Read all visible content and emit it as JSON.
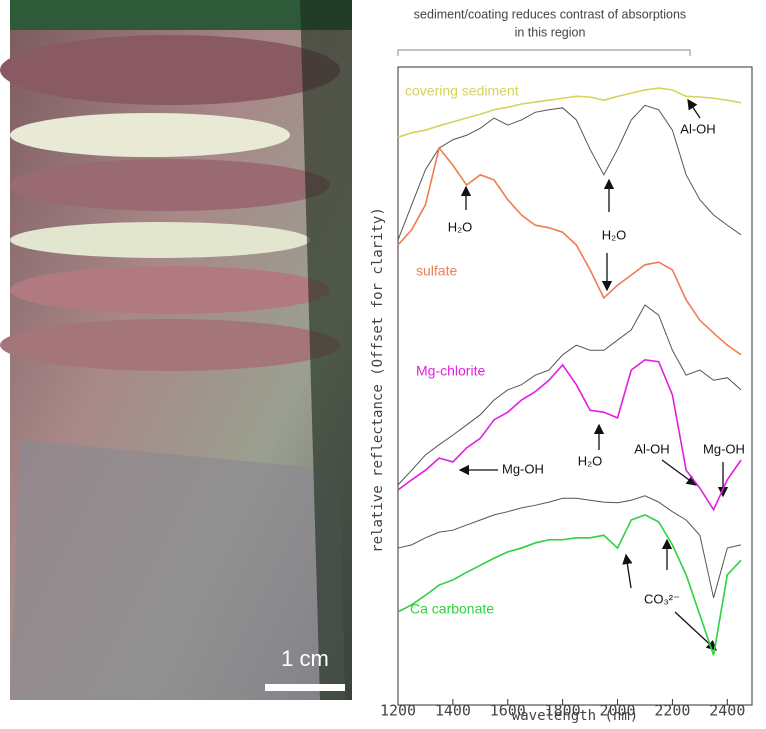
{
  "chart_data": {
    "type": "line",
    "title": [
      "sediment/coating reduces contrast of absorptions",
      "in this region"
    ],
    "x_label": "wavelength (nm)",
    "y_label": "relative reflectance (Offset for clarity)",
    "scale_label": "1 cm",
    "x": [
      1200,
      1250,
      1300,
      1350,
      1400,
      1450,
      1500,
      1550,
      1600,
      1650,
      1700,
      1750,
      1800,
      1850,
      1900,
      1950,
      2000,
      2050,
      2100,
      2150,
      2200,
      2250,
      2300,
      2350,
      2400,
      2450
    ],
    "xlim": [
      1200,
      2490
    ],
    "xticks": [
      1200,
      1400,
      1600,
      1800,
      2000,
      2200,
      2400
    ],
    "ylim": [
      0,
      100
    ],
    "series": [
      {
        "name": "covering sediment",
        "color": "#d4d45a",
        "values": [
          89.0,
          89.7,
          90.1,
          90.8,
          91.4,
          92.0,
          92.6,
          93.3,
          93.7,
          94.2,
          94.5,
          94.8,
          95.1,
          95.4,
          95.3,
          94.8,
          95.4,
          95.9,
          96.4,
          96.7,
          96.4,
          95.4,
          95.3,
          95.1,
          94.8,
          94.4
        ]
      },
      {
        "color": "#555555",
        "values": [
          72.9,
          78.4,
          83.9,
          87.3,
          88.6,
          89.3,
          90.4,
          92.0,
          90.9,
          91.7,
          92.9,
          93.3,
          93.6,
          91.7,
          87.1,
          83.1,
          87.1,
          91.7,
          94.0,
          93.3,
          90.1,
          83.1,
          79.2,
          76.8,
          75.2,
          73.7
        ]
      },
      {
        "name": "sulfate",
        "color": "#f07c50",
        "values": [
          72.1,
          74.5,
          78.4,
          87.3,
          84.6,
          81.5,
          83.1,
          82.3,
          79.2,
          76.8,
          75.2,
          74.8,
          74.1,
          72.1,
          68.2,
          63.8,
          65.8,
          67.4,
          69.0,
          69.4,
          68.2,
          63.5,
          60.3,
          58.3,
          56.4,
          54.9
        ]
      },
      {
        "color": "#555555",
        "values": [
          34.5,
          36.8,
          39.2,
          40.8,
          42.3,
          43.9,
          45.5,
          47.8,
          49.4,
          50.2,
          51.7,
          52.5,
          54.9,
          56.4,
          55.6,
          55.6,
          57.2,
          58.8,
          62.7,
          61.1,
          55.6,
          51.7,
          52.5,
          50.9,
          51.3,
          49.4
        ]
      },
      {
        "name": "Mg-chlorite",
        "color": "#e020e0",
        "values": [
          33.7,
          35.3,
          36.8,
          38.7,
          38.1,
          40.3,
          41.8,
          44.7,
          45.9,
          47.8,
          49.1,
          50.9,
          53.3,
          50.2,
          46.2,
          45.9,
          45.0,
          52.5,
          54.1,
          53.8,
          48.6,
          36.8,
          34.0,
          30.6,
          35.3,
          38.4
        ]
      },
      {
        "color": "#555555",
        "values": [
          24.6,
          25.1,
          26.2,
          27.1,
          27.4,
          28.2,
          29.0,
          29.8,
          30.3,
          30.9,
          31.3,
          31.8,
          32.4,
          32.4,
          32.1,
          31.8,
          31.7,
          32.1,
          32.8,
          31.8,
          30.3,
          29.0,
          26.6,
          16.8,
          24.6,
          25.1
        ]
      },
      {
        "name": "Ca carbonate",
        "color": "#30d040",
        "values": [
          14.6,
          15.7,
          17.2,
          18.8,
          19.6,
          20.8,
          21.9,
          23.0,
          24.0,
          24.6,
          25.4,
          25.9,
          25.9,
          26.2,
          26.2,
          26.6,
          24.6,
          29.0,
          29.8,
          28.7,
          25.1,
          20.4,
          14.1,
          7.8,
          20.4,
          22.7
        ]
      }
    ],
    "annotations": [
      "Al-OH",
      "H₂O",
      "H₂O",
      "Mg-OH",
      "H₂O",
      "Al-OH",
      "Mg-OH",
      "CO₃²⁻"
    ]
  }
}
